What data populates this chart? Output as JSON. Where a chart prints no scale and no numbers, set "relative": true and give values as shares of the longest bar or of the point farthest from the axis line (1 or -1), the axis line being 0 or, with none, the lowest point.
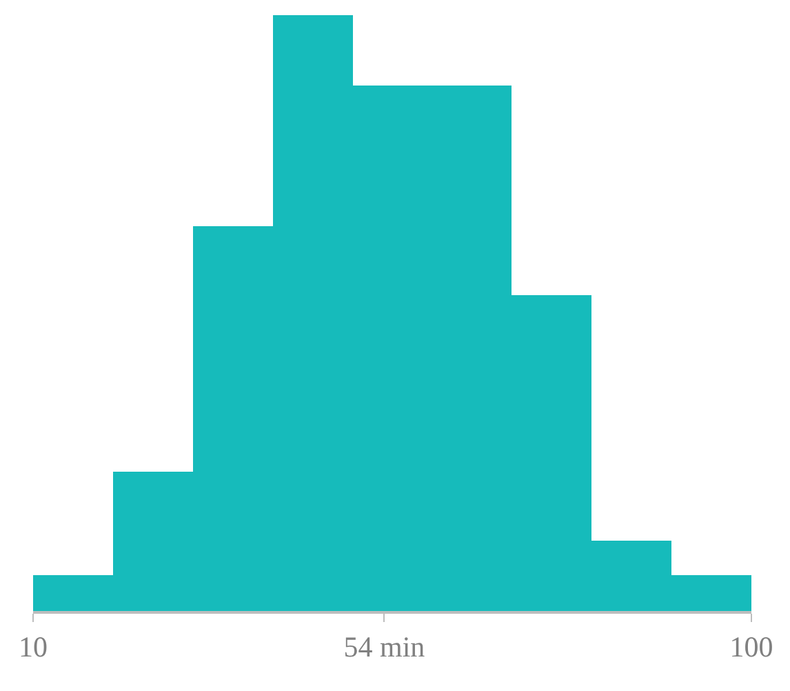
{
  "chart_data": {
    "type": "bar",
    "relative": true,
    "x": [
      15,
      25,
      35,
      45,
      55,
      65,
      75,
      85,
      95
    ],
    "values": [
      0.06,
      0.234,
      0.647,
      1,
      0.882,
      0.882,
      0.529,
      0.118,
      0.06
    ],
    "color": "#16bbbb",
    "xlim": [
      10,
      100
    ],
    "xticks": [
      10,
      {
        "value": 54,
        "label": "54 min"
      },
      100
    ]
  }
}
